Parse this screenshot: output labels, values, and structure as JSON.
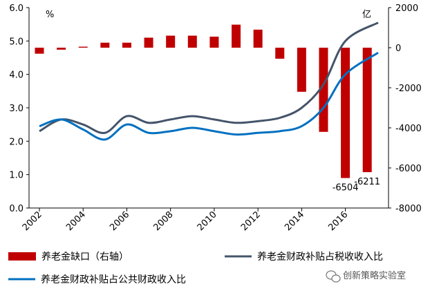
{
  "chart_data": {
    "type": "bar+line",
    "x_ticks": [
      "2002",
      "2004",
      "2006",
      "2008",
      "2010",
      "2012",
      "2014",
      "2016"
    ],
    "left_axis": {
      "unit_label": "%",
      "ticks": [
        "6.0",
        "5.0",
        "4.0",
        "3.0",
        "2.0",
        "1.0",
        "0.0"
      ],
      "range": [
        0,
        6
      ]
    },
    "right_axis": {
      "unit_label": "亿",
      "ticks": [
        "2000",
        "0",
        "-2000",
        "-4000",
        "-6000",
        "-8000"
      ],
      "range": [
        -8000,
        2000
      ]
    },
    "x_range": [
      2002,
      2017.5
    ],
    "bars": {
      "name": "养老金缺口（右轴）",
      "color": "#c00000",
      "x": [
        2002,
        2003,
        2004,
        2005,
        2006,
        2007,
        2008,
        2009,
        2010,
        2011,
        2012,
        2013,
        2014,
        2015,
        2016,
        2017
      ],
      "values": [
        -300,
        -100,
        50,
        250,
        250,
        500,
        600,
        600,
        550,
        1150,
        900,
        -550,
        -2200,
        -4200,
        -6504,
        -6211
      ]
    },
    "data_labels": [
      {
        "text": "-6504",
        "x": 2016,
        "y": -6504
      },
      {
        "text": "-6211",
        "x": 2017,
        "y": -6211
      }
    ],
    "series": [
      {
        "name": "养老金财政补贴占税收收入比",
        "color": "#44546a",
        "x": [
          2002,
          2003,
          2004,
          2005,
          2006,
          2007,
          2008,
          2009,
          2010,
          2011,
          2012,
          2013,
          2014,
          2015,
          2016,
          2017.5
        ],
        "values": [
          2.3,
          2.65,
          2.5,
          2.25,
          2.75,
          2.55,
          2.65,
          2.75,
          2.65,
          2.55,
          2.6,
          2.7,
          3.0,
          3.7,
          5.0,
          5.55
        ]
      },
      {
        "name": "养老金财政补贴占公共财政收入比",
        "color": "#0070c0",
        "x": [
          2002,
          2003,
          2004,
          2005,
          2006,
          2007,
          2008,
          2009,
          2010,
          2011,
          2012,
          2013,
          2014,
          2015,
          2016,
          2017.5
        ],
        "values": [
          2.45,
          2.65,
          2.35,
          2.05,
          2.5,
          2.25,
          2.3,
          2.4,
          2.3,
          2.2,
          2.25,
          2.3,
          2.45,
          3.0,
          4.0,
          4.65
        ]
      }
    ]
  },
  "watermark": {
    "text": "创新策略实验室",
    "icon": "wechat-icon"
  }
}
